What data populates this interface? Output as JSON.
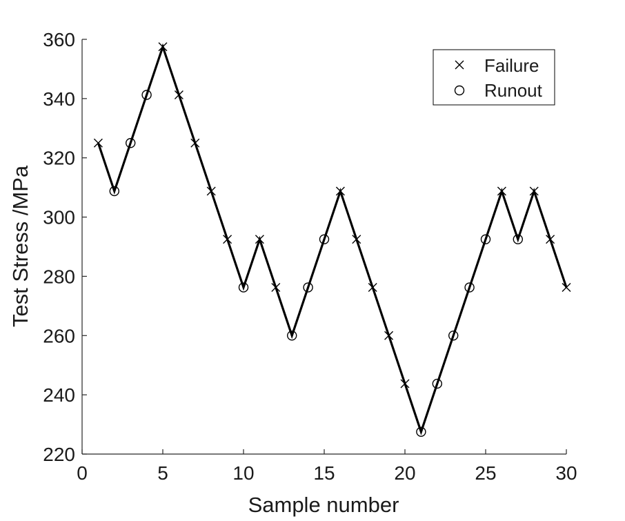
{
  "chart_data": {
    "type": "line",
    "title": "",
    "xlabel": "Sample number",
    "ylabel": "Test Stress /MPa",
    "xlim": [
      0,
      30
    ],
    "ylim": [
      220,
      360
    ],
    "xticks": [
      0,
      5,
      10,
      15,
      20,
      25,
      30
    ],
    "yticks": [
      220,
      240,
      260,
      280,
      300,
      320,
      340,
      360
    ],
    "grid": false,
    "legend_position": "top-right",
    "line_color": "#000000",
    "x": [
      1,
      2,
      3,
      4,
      5,
      6,
      7,
      8,
      9,
      10,
      11,
      12,
      13,
      14,
      15,
      16,
      17,
      18,
      19,
      20,
      21,
      22,
      23,
      24,
      25,
      26,
      27,
      28,
      29,
      30
    ],
    "y": [
      325,
      308.75,
      325,
      341.25,
      357.5,
      341.25,
      325,
      308.75,
      292.5,
      276.25,
      292.5,
      276.25,
      260,
      276.25,
      292.5,
      308.75,
      292.5,
      276.25,
      260,
      243.75,
      227.5,
      243.75,
      260,
      276.25,
      292.5,
      308.75,
      292.5,
      308.75,
      292.5,
      276.25
    ],
    "outcome": [
      "Failure",
      "Runout",
      "Runout",
      "Runout",
      "Failure",
      "Failure",
      "Failure",
      "Failure",
      "Failure",
      "Runout",
      "Failure",
      "Failure",
      "Runout",
      "Runout",
      "Runout",
      "Failure",
      "Failure",
      "Failure",
      "Failure",
      "Failure",
      "Runout",
      "Runout",
      "Runout",
      "Runout",
      "Runout",
      "Failure",
      "Runout",
      "Failure",
      "Failure",
      "Failure"
    ],
    "legend": [
      {
        "name": "Failure",
        "marker": "x"
      },
      {
        "name": "Runout",
        "marker": "o"
      }
    ]
  }
}
